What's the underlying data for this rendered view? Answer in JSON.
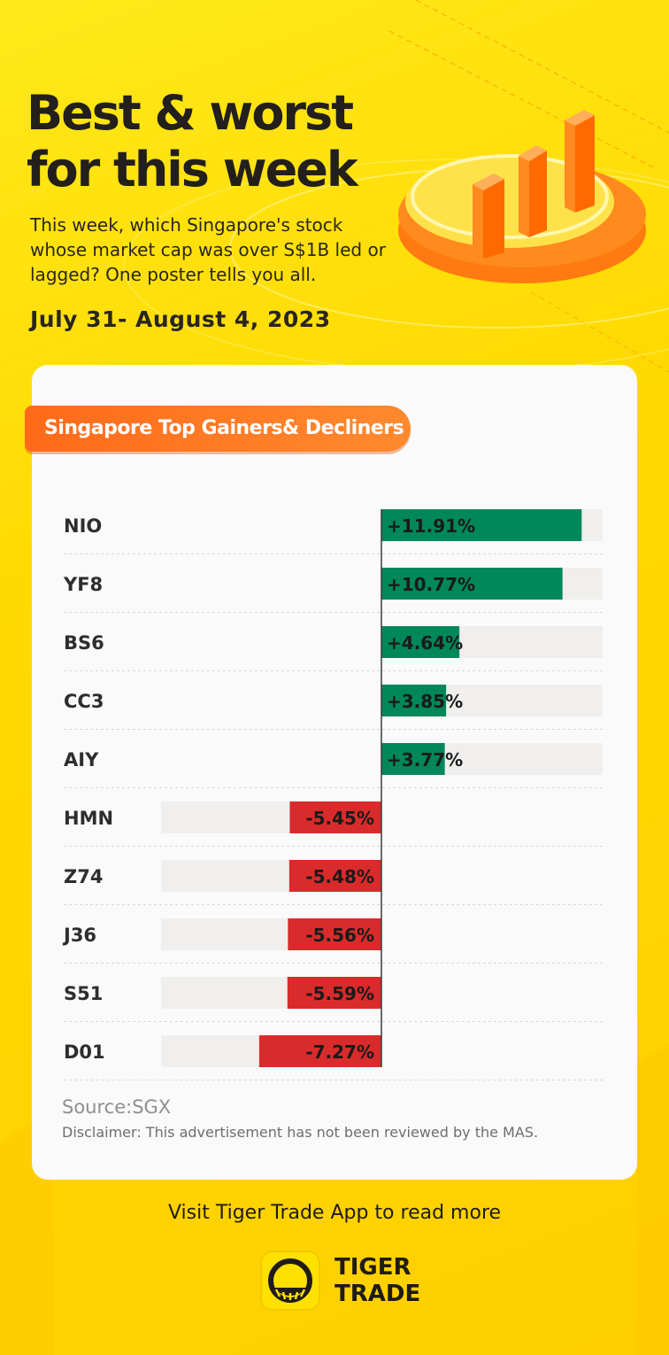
{
  "header": {
    "title_line1": "Best & worst",
    "title_line2": "for this week",
    "subtitle": "This week, which Singapore's stock whose market cap was over S$1B led or lagged? One poster tells you all.",
    "date": "July 31- August 4, 2023"
  },
  "badge": {
    "label": "Singapore Top Gainers& Decliners"
  },
  "colors": {
    "gain": "#00875a",
    "loss": "#d92b2b",
    "track": "#f0efed",
    "accent": "#ff7a1f",
    "text": "#2d2d2d"
  },
  "chart_data": {
    "type": "bar",
    "orientation": "horizontal-diverging",
    "categories": [
      "NIO",
      "YF8",
      "BS6",
      "CC3",
      "AIY",
      "HMN",
      "Z74",
      "J36",
      "S51",
      "D01"
    ],
    "values": [
      11.91,
      10.77,
      4.64,
      3.85,
      3.77,
      -5.45,
      -5.48,
      -5.56,
      -5.59,
      -7.27
    ],
    "labels": [
      "+11.91%",
      "+10.77%",
      "+4.64%",
      "+3.85%",
      "+3.77%",
      "-5.45%",
      "-5.48%",
      "-5.56%",
      "-5.59%",
      "-7.27%"
    ],
    "unit": "%",
    "title": "",
    "xlabel": "",
    "ylabel": "",
    "grid": false,
    "legend": "none"
  },
  "footer": {
    "source": "Source:SGX",
    "disclaimer": "Disclaimer: This advertisement has not been reviewed by the MAS.",
    "visit": "Visit Tiger Trade App to read more",
    "brand_line1": "TIGER",
    "brand_line2": "TRADE"
  },
  "icons": {
    "hero": "bar-chart-podium-icon",
    "brand": "tiger-trade-logo-icon"
  }
}
